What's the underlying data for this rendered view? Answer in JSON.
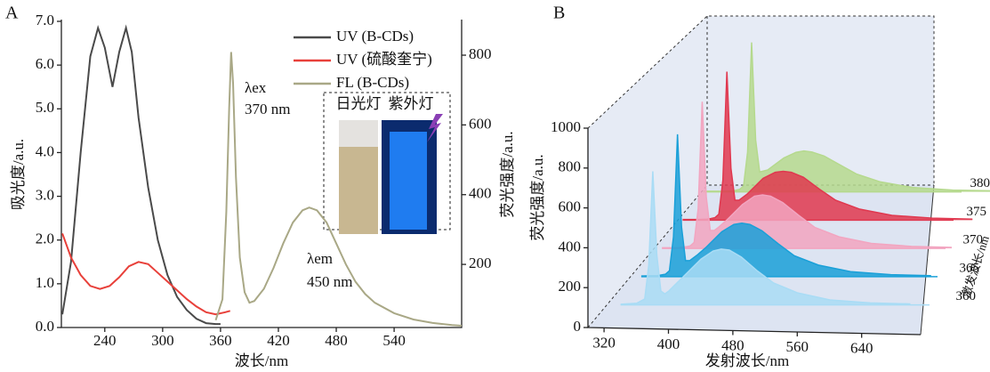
{
  "chart_data": [
    {
      "type": "line",
      "label": "A",
      "xlabel": "波长/nm",
      "ylabel": "吸光度/a.u.",
      "y2label": "荧光强度/a.u.",
      "xlim": [
        195,
        610
      ],
      "xticks": [
        240,
        300,
        360,
        420,
        480,
        540
      ],
      "ylim": [
        0,
        7
      ],
      "yticks": [
        {
          "value": 0,
          "label": "0.0"
        },
        {
          "value": 1,
          "label": "1.0"
        },
        {
          "value": 2,
          "label": "2.0"
        },
        {
          "value": 3,
          "label": "3.0"
        },
        {
          "value": 4,
          "label": "4.0"
        },
        {
          "value": 5,
          "label": "5.0"
        },
        {
          "value": 6,
          "label": "6.0"
        },
        {
          "value": 7,
          "label": "7.0"
        }
      ],
      "y2lim": [
        19,
        897
      ],
      "y2ticks": [
        200,
        400,
        600,
        800
      ],
      "series": [
        {
          "name": "UV (B-CDs)",
          "color": "#4a4a4a",
          "x": [
            196,
            205,
            215,
            225,
            233,
            240,
            248,
            255,
            262,
            268,
            275,
            285,
            295,
            305,
            315,
            325,
            335,
            345,
            355,
            360
          ],
          "values": [
            0.3,
            1.5,
            4.0,
            6.2,
            6.85,
            6.4,
            5.5,
            6.3,
            6.85,
            6.3,
            4.8,
            3.2,
            2.0,
            1.2,
            0.7,
            0.4,
            0.2,
            0.1,
            0.08,
            0.08
          ]
        },
        {
          "name": "UV (硫酸奎宁)",
          "color": "#e8403a",
          "x": [
            196,
            205,
            215,
            225,
            235,
            245,
            255,
            265,
            275,
            285,
            295,
            305,
            315,
            325,
            335,
            345,
            355,
            365,
            370
          ],
          "values": [
            2.15,
            1.6,
            1.2,
            0.95,
            0.88,
            0.95,
            1.15,
            1.4,
            1.5,
            1.45,
            1.25,
            1.05,
            0.85,
            0.65,
            0.48,
            0.35,
            0.3,
            0.35,
            0.38
          ]
        },
        {
          "name": "FL (B-CDs)",
          "color": "#a9a886",
          "axis": "y2",
          "x": [
            355,
            362,
            366,
            369,
            371,
            373,
            376,
            380,
            385,
            390,
            395,
            405,
            415,
            425,
            435,
            445,
            452,
            460,
            470,
            480,
            490,
            500,
            510,
            520,
            540,
            560,
            580,
            600,
            610
          ],
          "values": [
            40,
            100,
            350,
            650,
            809,
            720,
            450,
            220,
            120,
            90,
            95,
            130,
            190,
            260,
            320,
            355,
            363,
            355,
            320,
            260,
            200,
            150,
            115,
            90,
            60,
            42,
            32,
            26,
            24
          ]
        }
      ],
      "annotations": [
        "λex",
        "370 nm",
        "λem",
        "450 nm"
      ],
      "inset": [
        "日光灯",
        "紫外灯"
      ]
    },
    {
      "type": "waterfall",
      "label": "B",
      "xlabel": "发射波长/nm",
      "ylabel": "荧光强度/a.u.",
      "zlabel": "激发波长/nm",
      "xlim": [
        300,
        700
      ],
      "xticks": [
        320,
        400,
        480,
        560,
        640
      ],
      "ylim": [
        0,
        1000
      ],
      "yticks": [
        0,
        200,
        400,
        600,
        800,
        1000
      ],
      "x": [
        320,
        340,
        350,
        355,
        360,
        365,
        370,
        375,
        380,
        385,
        390,
        400,
        410,
        420,
        435,
        445,
        455,
        470,
        490,
        510,
        540,
        580,
        630,
        680
      ],
      "series": [
        {
          "name": "360",
          "color": "#a9dcf5",
          "values": [
            3,
            8,
            30,
            200,
            670,
            250,
            70,
            55,
            70,
            90,
            110,
            150,
            190,
            230,
            270,
            280,
            275,
            240,
            170,
            110,
            60,
            25,
            10,
            5
          ]
        },
        {
          "name": "365",
          "color": "#1aa0d8",
          "values": [
            3,
            5,
            12,
            30,
            200,
            714,
            250,
            80,
            80,
            95,
            110,
            145,
            185,
            225,
            262,
            268,
            262,
            230,
            165,
            105,
            58,
            25,
            10,
            5
          ]
        },
        {
          "name": "370",
          "color": "#f2a5c0",
          "values": [
            3,
            4,
            8,
            12,
            30,
            200,
            736,
            260,
            90,
            90,
            105,
            140,
            180,
            220,
            262,
            268,
            262,
            230,
            165,
            105,
            58,
            25,
            10,
            5
          ]
        },
        {
          "name": "375",
          "color": "#e0384f",
          "values": [
            3,
            3,
            5,
            8,
            12,
            30,
            200,
            745,
            260,
            100,
            100,
            130,
            170,
            210,
            240,
            245,
            240,
            215,
            155,
            100,
            55,
            24,
            10,
            5
          ]
        },
        {
          "name": "380",
          "color": "#b5d98d",
          "values": [
            3,
            3,
            4,
            5,
            8,
            12,
            30,
            200,
            750,
            260,
            100,
            110,
            140,
            170,
            198,
            205,
            200,
            180,
            135,
            90,
            50,
            22,
            9,
            5
          ]
        }
      ]
    }
  ]
}
